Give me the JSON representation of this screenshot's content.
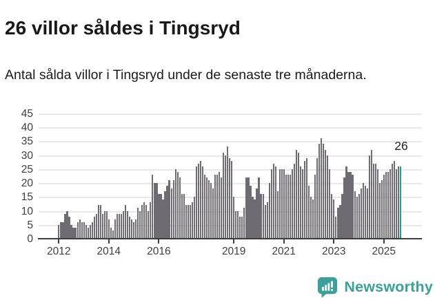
{
  "header": {
    "title": "26 villor såldes i Tingsryd",
    "subtitle": "Antal sålda villor i Tingsryd under de senaste tre månaderna."
  },
  "chart_data": {
    "type": "bar",
    "title": "26 villor såldes i Tingsryd",
    "description": "Antal sålda villor i Tingsryd under de senaste tre månaderna, rullande tremånadersvärde per månad",
    "start_month": "2012-01",
    "end_month": "2025-09",
    "values": [
      5,
      6,
      6,
      9,
      10,
      8,
      5,
      4,
      4,
      6,
      7,
      6,
      6,
      5,
      4,
      5,
      6,
      8,
      9,
      12,
      12,
      9,
      10,
      10,
      7,
      4,
      3,
      7,
      9,
      9,
      9,
      10,
      12,
      10,
      8,
      7,
      6,
      7,
      11,
      10,
      12,
      13,
      12,
      10,
      13,
      23,
      20,
      20,
      16,
      16,
      14,
      17,
      19,
      21,
      18,
      21,
      25,
      24,
      22,
      16,
      16,
      12,
      12,
      12,
      13,
      15,
      26,
      27,
      28,
      26,
      23,
      22,
      21,
      20,
      18,
      23,
      23,
      24,
      22,
      31,
      30,
      33,
      29,
      28,
      15,
      10,
      10,
      8,
      8,
      11,
      22,
      22,
      19,
      15,
      14,
      18,
      22,
      16,
      16,
      12,
      13,
      20,
      25,
      27,
      26,
      17,
      25,
      25,
      25,
      23,
      23,
      23,
      25,
      27,
      32,
      31,
      26,
      25,
      28,
      29,
      19,
      15,
      14,
      23,
      29,
      34,
      36,
      34,
      32,
      30,
      25,
      16,
      14,
      8,
      11,
      12,
      16,
      22,
      26,
      24,
      24,
      23,
      17,
      15,
      16,
      18,
      20,
      19,
      18,
      30,
      32,
      27,
      27,
      25,
      20,
      21,
      23,
      24,
      24,
      25,
      27,
      28,
      25,
      26,
      26
    ],
    "highlight_last": true,
    "annotation": {
      "label": "26",
      "applies_to": "last-bar"
    },
    "y_ticks": [
      0,
      5,
      10,
      15,
      20,
      25,
      30,
      35,
      40,
      45
    ],
    "ylim": [
      0,
      45
    ],
    "x_tick_years": [
      2012,
      2014,
      2016,
      2019,
      2021,
      2023,
      2025
    ],
    "grid": true,
    "legend": "none",
    "colors": {
      "bar": "#6f6b73",
      "highlight": "#1a9ba0",
      "gridline": "#e9e7e8",
      "axis": "#3d3d3d"
    }
  },
  "footer": {
    "brand": "Newsworthy",
    "brand_color": "#3aa098",
    "icon": "newsworthy-bar-chart-speech-bubble"
  }
}
